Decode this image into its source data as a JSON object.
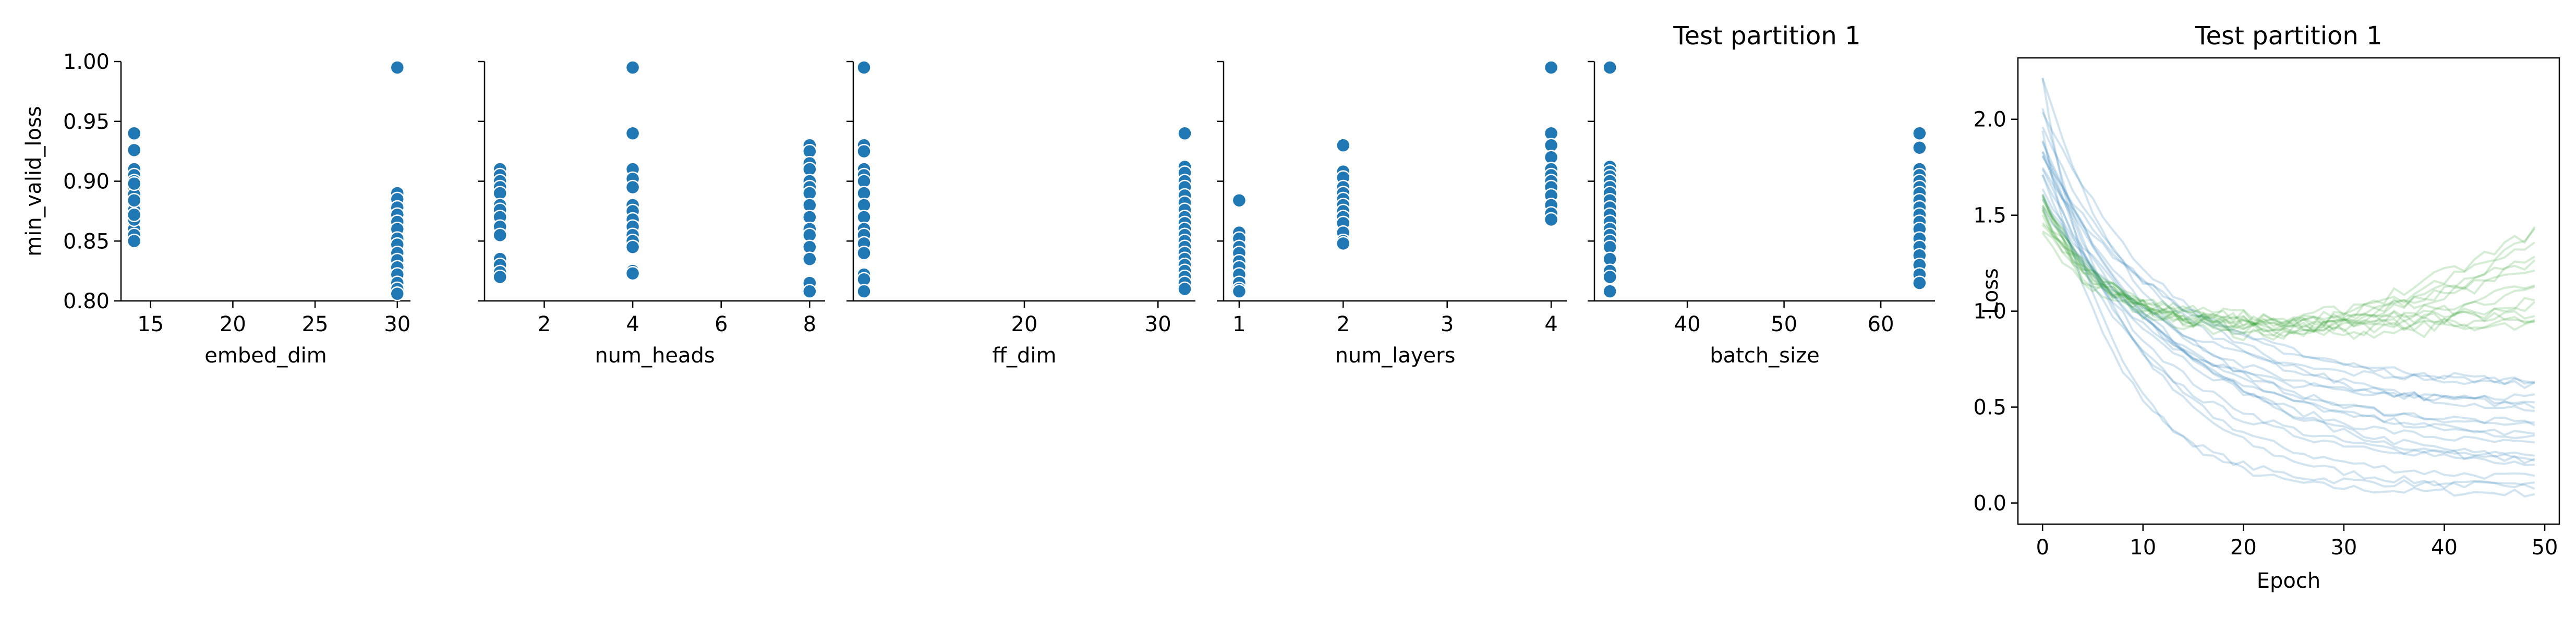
{
  "chart_data": [
    {
      "type": "scatter",
      "title": "",
      "xlabel": "embed_dim",
      "ylabel": "min_valid_loss",
      "xlim": [
        13.2,
        30.8
      ],
      "ylim": [
        0.8,
        1.0
      ],
      "xticks": [
        15,
        20,
        25,
        30
      ],
      "yticks": [
        0.8,
        0.85,
        0.9,
        0.95,
        1.0
      ],
      "ytick_labels": [
        "0.80",
        "0.85",
        "0.90",
        "0.95",
        "1.00"
      ],
      "x": [
        14,
        14,
        14,
        14,
        14,
        14,
        14,
        14,
        14,
        14,
        14,
        14,
        14,
        14,
        14,
        14,
        14,
        14,
        30,
        30,
        30,
        30,
        30,
        30,
        30,
        30,
        30,
        30,
        30,
        30,
        30,
        30,
        30,
        30
      ],
      "y": [
        0.94,
        0.926,
        0.91,
        0.905,
        0.9,
        0.895,
        0.889,
        0.88,
        0.876,
        0.87,
        0.865,
        0.86,
        0.855,
        0.85,
        0.898,
        0.884,
        0.868,
        0.872,
        0.995,
        0.89,
        0.885,
        0.878,
        0.872,
        0.866,
        0.86,
        0.852,
        0.847,
        0.84,
        0.834,
        0.828,
        0.822,
        0.815,
        0.81,
        0.806
      ],
      "color": "#1f77b4"
    },
    {
      "type": "scatter",
      "title": "",
      "xlabel": "num_heads",
      "ylabel": "",
      "xlim": [
        0.65,
        8.35
      ],
      "ylim": [
        0.8,
        1.0
      ],
      "xticks": [
        2,
        4,
        6,
        8
      ],
      "x": [
        1,
        1,
        1,
        1,
        1,
        1,
        1,
        1,
        1,
        1,
        1,
        1,
        1,
        1,
        4,
        4,
        4,
        4,
        4,
        4,
        4,
        4,
        4,
        4,
        4,
        4,
        4,
        4,
        8,
        8,
        8,
        8,
        8,
        8,
        8,
        8,
        8,
        8,
        8,
        8,
        8,
        8,
        8
      ],
      "y": [
        0.91,
        0.905,
        0.9,
        0.895,
        0.89,
        0.88,
        0.876,
        0.87,
        0.862,
        0.855,
        0.835,
        0.83,
        0.824,
        0.82,
        0.995,
        0.94,
        0.91,
        0.902,
        0.895,
        0.88,
        0.875,
        0.868,
        0.862,
        0.855,
        0.85,
        0.845,
        0.825,
        0.823,
        0.93,
        0.925,
        0.915,
        0.91,
        0.9,
        0.895,
        0.89,
        0.88,
        0.87,
        0.86,
        0.855,
        0.845,
        0.835,
        0.815,
        0.808
      ],
      "color": "#1f77b4"
    },
    {
      "type": "scatter",
      "title": "",
      "xlabel": "ff_dim",
      "ylabel": "",
      "xlim": [
        7.2,
        32.8
      ],
      "ylim": [
        0.8,
        1.0
      ],
      "xticks": [
        20,
        30
      ],
      "x": [
        8,
        8,
        8,
        8,
        8,
        8,
        8,
        8,
        8,
        8,
        8,
        8,
        8,
        8,
        8,
        8,
        32,
        32,
        32,
        32,
        32,
        32,
        32,
        32,
        32,
        32,
        32,
        32,
        32,
        32,
        32,
        32,
        32,
        32,
        32,
        32,
        32
      ],
      "y": [
        0.995,
        0.93,
        0.925,
        0.91,
        0.905,
        0.9,
        0.89,
        0.88,
        0.87,
        0.86,
        0.855,
        0.848,
        0.84,
        0.822,
        0.818,
        0.808,
        0.94,
        0.912,
        0.907,
        0.9,
        0.895,
        0.888,
        0.882,
        0.876,
        0.87,
        0.865,
        0.86,
        0.855,
        0.85,
        0.845,
        0.84,
        0.835,
        0.83,
        0.825,
        0.82,
        0.815,
        0.81
      ],
      "color": "#1f77b4"
    },
    {
      "type": "scatter",
      "title": "",
      "xlabel": "num_layers",
      "ylabel": "",
      "xlim": [
        0.85,
        4.15
      ],
      "ylim": [
        0.8,
        1.0
      ],
      "xticks": [
        1,
        2,
        3,
        4
      ],
      "x": [
        1,
        1,
        1,
        1,
        1,
        1,
        1,
        1,
        1,
        1,
        1,
        2,
        2,
        2,
        2,
        2,
        2,
        2,
        2,
        2,
        2,
        2,
        2,
        2,
        4,
        4,
        4,
        4,
        4,
        4,
        4,
        4,
        4,
        4,
        4,
        4
      ],
      "y": [
        0.884,
        0.857,
        0.852,
        0.845,
        0.84,
        0.833,
        0.828,
        0.822,
        0.815,
        0.81,
        0.808,
        0.93,
        0.908,
        0.903,
        0.895,
        0.89,
        0.885,
        0.88,
        0.875,
        0.87,
        0.865,
        0.857,
        0.85,
        0.848,
        0.995,
        0.94,
        0.93,
        0.92,
        0.91,
        0.905,
        0.9,
        0.895,
        0.888,
        0.88,
        0.873,
        0.868
      ],
      "color": "#1f77b4"
    },
    {
      "type": "scatter",
      "title": "Test partition 1",
      "xlabel": "batch_size",
      "ylabel": "",
      "xlim": [
        30.4,
        65.6
      ],
      "ylim": [
        0.8,
        1.0
      ],
      "xticks": [
        40,
        50,
        60
      ],
      "x": [
        32,
        32,
        32,
        32,
        32,
        32,
        32,
        32,
        32,
        32,
        32,
        32,
        32,
        32,
        32,
        32,
        32,
        32,
        32,
        64,
        64,
        64,
        64,
        64,
        64,
        64,
        64,
        64,
        64,
        64,
        64,
        64,
        64,
        64,
        64,
        64,
        64
      ],
      "y": [
        0.995,
        0.912,
        0.908,
        0.904,
        0.9,
        0.895,
        0.89,
        0.884,
        0.878,
        0.872,
        0.866,
        0.86,
        0.855,
        0.85,
        0.845,
        0.835,
        0.825,
        0.82,
        0.808,
        0.94,
        0.928,
        0.91,
        0.905,
        0.9,
        0.895,
        0.89,
        0.884,
        0.878,
        0.872,
        0.866,
        0.86,
        0.852,
        0.845,
        0.838,
        0.83,
        0.822,
        0.815
      ],
      "color": "#1f77b4"
    },
    {
      "type": "line",
      "title": "Test partition 1",
      "xlabel": "Epoch",
      "ylabel": "Loss",
      "xlim": [
        -2.45,
        51.45
      ],
      "ylim": [
        -0.11,
        2.32
      ],
      "xticks": [
        0,
        10,
        20,
        30,
        40,
        50
      ],
      "yticks": [
        0.0,
        0.5,
        1.0,
        1.5,
        2.0
      ],
      "ytick_labels": [
        "0.0",
        "0.5",
        "1.0",
        "1.5",
        "2.0"
      ],
      "epochs": 50,
      "series": [
        {
          "role": "training loss runs",
          "color": "#1f77b4",
          "opacity": 0.2,
          "start_values": [
            2.2,
            2.05,
            1.95,
            1.9,
            1.85,
            1.8,
            1.75,
            1.7,
            1.65,
            1.6,
            1.58,
            1.55
          ],
          "final_values": [
            0.05,
            0.07,
            0.09,
            0.12,
            0.15,
            0.18,
            0.2,
            0.23,
            0.27,
            0.3,
            0.32,
            0.36,
            0.4,
            0.44,
            0.48,
            0.52,
            0.55,
            0.58,
            0.6,
            0.63
          ]
        },
        {
          "role": "validation loss runs",
          "color": "#2ca02c",
          "opacity": 0.2,
          "start_values": [
            1.6,
            1.58,
            1.55,
            1.52,
            1.5,
            1.48,
            1.45,
            1.42
          ],
          "min_values": [
            0.88,
            0.9,
            0.92,
            0.93,
            0.95
          ],
          "final_values": [
            0.92,
            0.95,
            0.97,
            1.0,
            1.02,
            1.05,
            1.1,
            1.15,
            1.2,
            1.25,
            1.3,
            1.35,
            1.4,
            1.42
          ]
        }
      ]
    }
  ]
}
